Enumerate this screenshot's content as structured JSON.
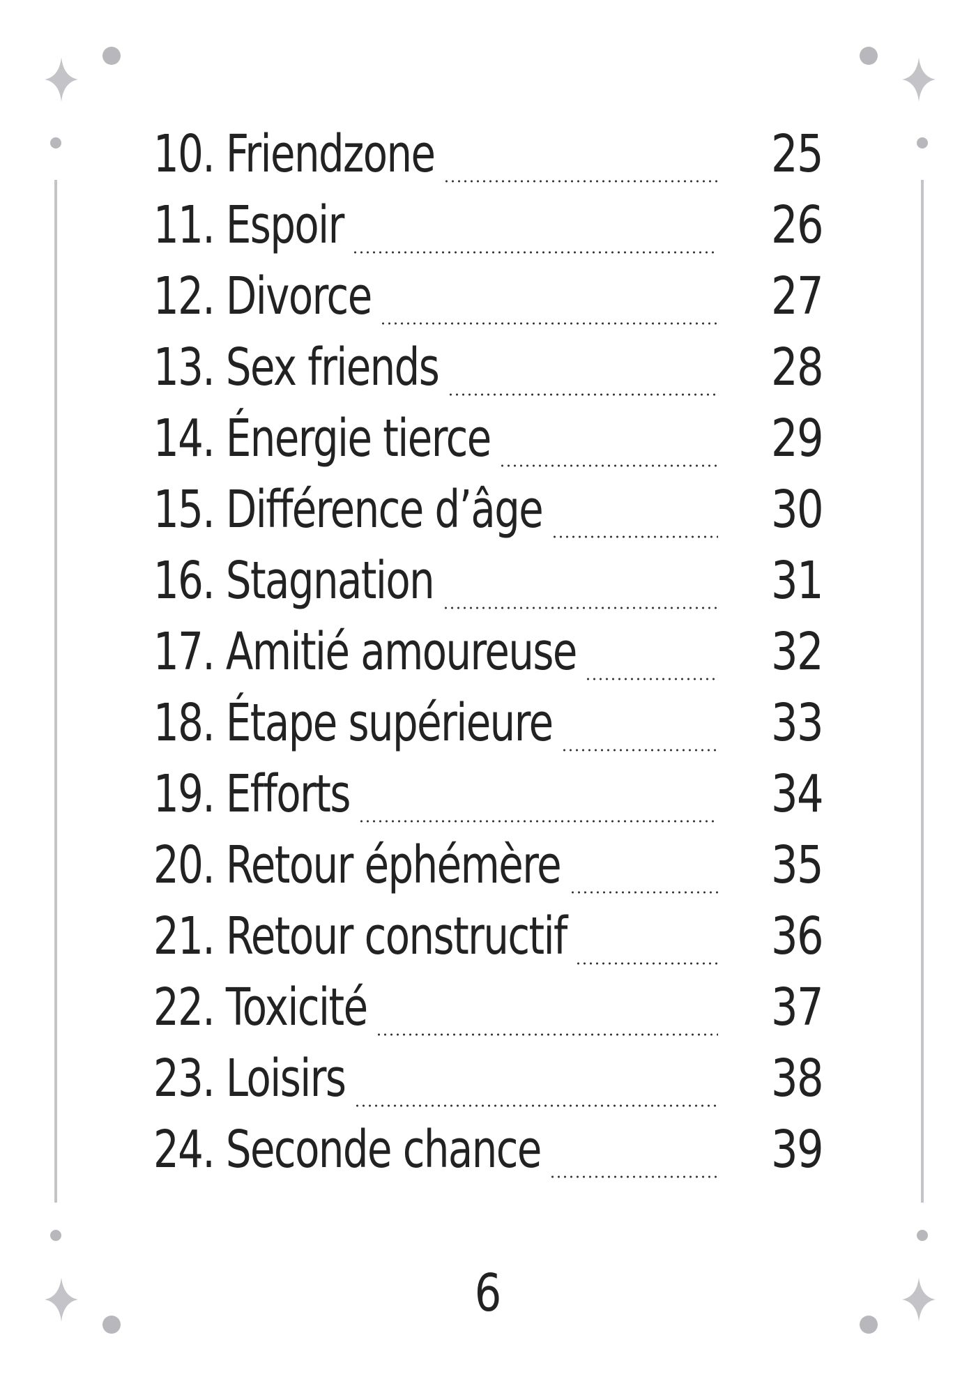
{
  "toc": {
    "entries": [
      {
        "label": "10. Friendzone",
        "page": "25"
      },
      {
        "label": "11. Espoir",
        "page": "26"
      },
      {
        "label": "12. Divorce",
        "page": "27"
      },
      {
        "label": "13. Sex friends",
        "page": "28"
      },
      {
        "label": "14. Énergie tierce",
        "page": "29"
      },
      {
        "label": "15. Différence d’âge",
        "page": "30"
      },
      {
        "label": "16. Stagnation",
        "page": "31"
      },
      {
        "label": "17. Amitié amoureuse",
        "page": "32"
      },
      {
        "label": "18. Étape supérieure",
        "page": "33"
      },
      {
        "label": "19. Efforts",
        "page": "34"
      },
      {
        "label": "20. Retour éphémère",
        "page": "35"
      },
      {
        "label": "21. Retour constructif",
        "page": "36"
      },
      {
        "label": "22. Toxicité",
        "page": "37"
      },
      {
        "label": "23. Loisirs",
        "page": "38"
      },
      {
        "label": "24. Seconde chance",
        "page": "39"
      }
    ]
  },
  "footer": {
    "page_number": "6"
  },
  "colors": {
    "text": "#222222",
    "ornament": "#c4c4c8",
    "ornament_dot": "#b8b8bc"
  },
  "icons": [
    "sparkle-icon",
    "dot-icon",
    "frame-line"
  ]
}
